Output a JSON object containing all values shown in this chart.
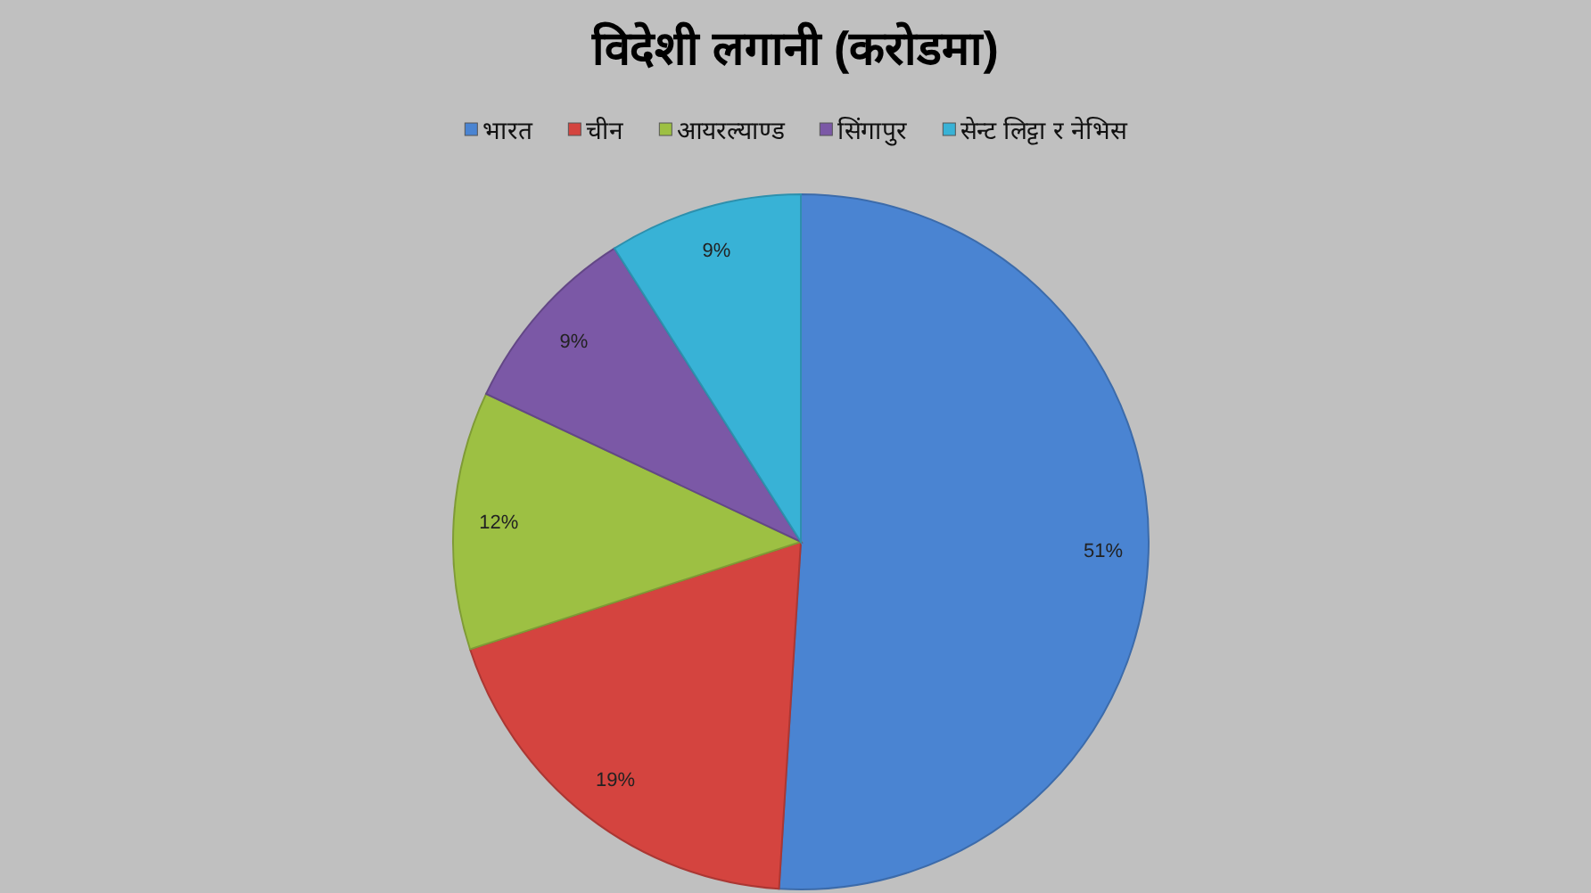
{
  "chart_data": {
    "type": "pie",
    "title": "विदेशी लगानी (करोडमा)",
    "categories": [
      "भारत",
      "चीन",
      "आयरल्याण्ड",
      "सिंगापुर",
      "सेन्ट लिट्टा र नेभिस"
    ],
    "values": [
      51,
      19,
      12,
      9,
      9
    ],
    "colors": [
      "#4a84d2",
      "#d4443f",
      "#9dc043",
      "#7b58a6",
      "#38b2d6"
    ],
    "value_labels": [
      "51%",
      "19%",
      "12%",
      "9%",
      "9%"
    ],
    "legend": "top"
  }
}
